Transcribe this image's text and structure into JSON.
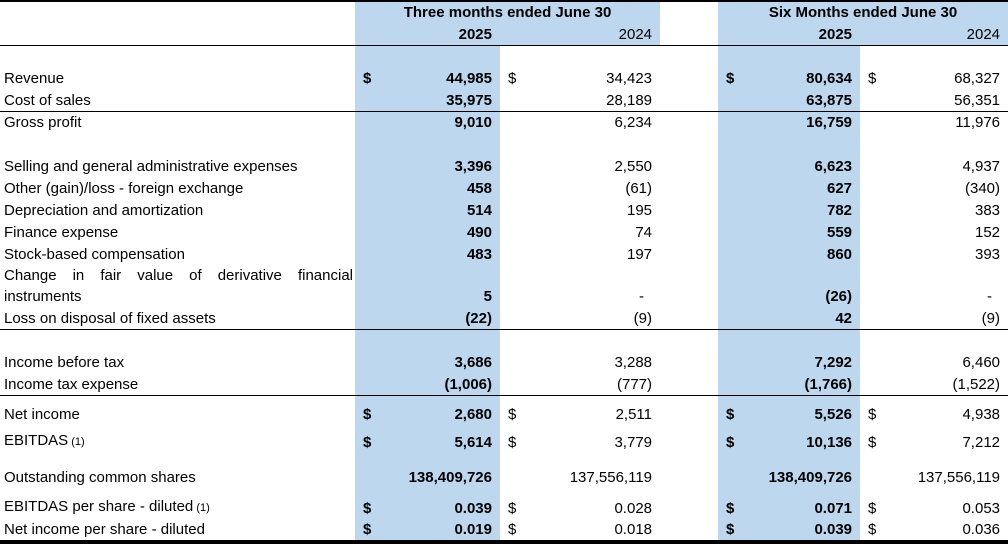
{
  "colors": {
    "highlight": "#BDD7EE",
    "border": "#000000",
    "background": "#FFFFFF"
  },
  "table": {
    "group_headers": [
      "Three months ended June 30",
      "Six Months ended June 30"
    ],
    "year_headers": [
      "2025",
      "2024",
      "2025",
      "2024"
    ],
    "rows": [
      {
        "type": "spacer",
        "size": "full"
      },
      {
        "type": "data",
        "label": "Revenue",
        "dollar": true,
        "values": [
          "44,985",
          "34,423",
          "80,634",
          "68,327"
        ]
      },
      {
        "type": "data",
        "label": "Cost of sales",
        "values": [
          "35,975",
          "28,189",
          "63,875",
          "56,351"
        ]
      },
      {
        "type": "data",
        "label": "Gross profit",
        "border_top": true,
        "values": [
          "9,010",
          "6,234",
          "16,759",
          "11,976"
        ]
      },
      {
        "type": "spacer",
        "size": "full"
      },
      {
        "type": "data",
        "label": "Selling and general administrative expenses",
        "values": [
          "3,396",
          "2,550",
          "6,623",
          "4,937"
        ]
      },
      {
        "type": "data",
        "label": "Other (gain)/loss - foreign exchange",
        "values": [
          "458",
          "(61)",
          "627",
          "(340)"
        ]
      },
      {
        "type": "data",
        "label": "Depreciation and amortization",
        "values": [
          "514",
          "195",
          "782",
          "383"
        ]
      },
      {
        "type": "data",
        "label": "Finance expense",
        "values": [
          "490",
          "74",
          "559",
          "152"
        ]
      },
      {
        "type": "data",
        "label": "Stock-based compensation",
        "values": [
          "483",
          "197",
          "860",
          "393"
        ]
      },
      {
        "type": "data",
        "label": "Change in fair value of derivative financial instruments",
        "justify": true,
        "values": [
          "5",
          "-",
          "(26)",
          "-"
        ]
      },
      {
        "type": "data",
        "label": "Loss on disposal of fixed assets",
        "values": [
          "(22)",
          "(9)",
          "42",
          "(9)"
        ]
      },
      {
        "type": "spacer",
        "size": "full",
        "border_top": true
      },
      {
        "type": "data",
        "label": "Income before tax",
        "values": [
          "3,686",
          "3,288",
          "7,292",
          "6,460"
        ]
      },
      {
        "type": "data",
        "label": "Income tax expense",
        "values": [
          "(1,006)",
          "(777)",
          "(1,766)",
          "(1,522)"
        ]
      },
      {
        "type": "spacer",
        "size": "sm",
        "border_top": true
      },
      {
        "type": "data",
        "label": "Net income",
        "dollar": true,
        "values": [
          "2,680",
          "2,511",
          "5,526",
          "4,938"
        ]
      },
      {
        "type": "spacer",
        "size": "xs"
      },
      {
        "type": "data",
        "label": "EBITDAS",
        "note": "(1)",
        "dollar": true,
        "values": [
          "5,614",
          "3,779",
          "10,136",
          "7,212"
        ]
      },
      {
        "type": "spacer",
        "size": "md"
      },
      {
        "type": "data",
        "label": "Outstanding common shares",
        "values": [
          "138,409,726",
          "137,556,119",
          "138,409,726",
          "137,556,119"
        ]
      },
      {
        "type": "spacer",
        "size": "sm"
      },
      {
        "type": "data",
        "label": "EBITDAS per share - diluted",
        "note": "(1)",
        "dollar": true,
        "values": [
          "0.039",
          "0.028",
          "0.071",
          "0.053"
        ]
      },
      {
        "type": "data",
        "label": "Net income per share - diluted",
        "dollar": true,
        "values": [
          "0.019",
          "0.018",
          "0.039",
          "0.036"
        ]
      }
    ]
  }
}
